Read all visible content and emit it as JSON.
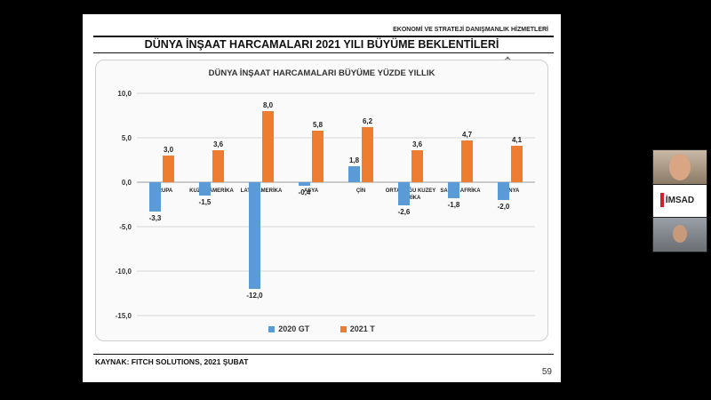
{
  "header": {
    "brand": "EKONOMİ VE STRATEJİ DANIŞMANLIK HİZMETLERİ"
  },
  "slide_title": "DÜNYA İNŞAAT HARCAMALARI 2021 YILI BÜYÜME BEKLENTİLERİ",
  "source": "KAYNAK: FITCH SOLUTIONS, 2021 ŞUBAT",
  "page_number": "59",
  "video": {
    "logo": "İMSAD"
  },
  "colors": {
    "series_2020": "#5b9bd5",
    "series_2021": "#ed7d31"
  },
  "chart_data": {
    "type": "bar",
    "title": "DÜNYA İNŞAAT HARCAMALARI BÜYÜME YÜZDE YILLIK",
    "categories": [
      "AVRUPA",
      "KUZEY AMERİKA",
      "LATİN AMERİKA",
      "ASYA",
      "ÇİN",
      "ORTADOĞU KUZEY AFRİKA",
      "SAHRA AFRİKA",
      "DÜNYA"
    ],
    "series": [
      {
        "name": "2020 GT",
        "values": [
          -3.3,
          -1.5,
          -12.0,
          -0.4,
          1.8,
          -2.6,
          -1.8,
          -2.0
        ],
        "labels": [
          "-3,3",
          "-1,5",
          "-12,0",
          "-0,4",
          "1,8",
          "-2,6",
          "-1,8",
          "-2,0"
        ]
      },
      {
        "name": "2021 T",
        "values": [
          3.0,
          3.6,
          8.0,
          5.8,
          6.2,
          3.6,
          4.7,
          4.1
        ],
        "labels": [
          "3,0",
          "3,6",
          "8,0",
          "5,8",
          "6,2",
          "3,6",
          "4,7",
          "4,1"
        ]
      }
    ],
    "yticks": [
      10,
      5,
      0,
      -5,
      -10,
      -15
    ],
    "ytick_labels": [
      "10,0",
      "5,0",
      "0,0",
      "-5,0",
      "-10,0",
      "-15,0"
    ],
    "ylim": [
      -15,
      10
    ],
    "grid": true,
    "legend": "bottom"
  }
}
